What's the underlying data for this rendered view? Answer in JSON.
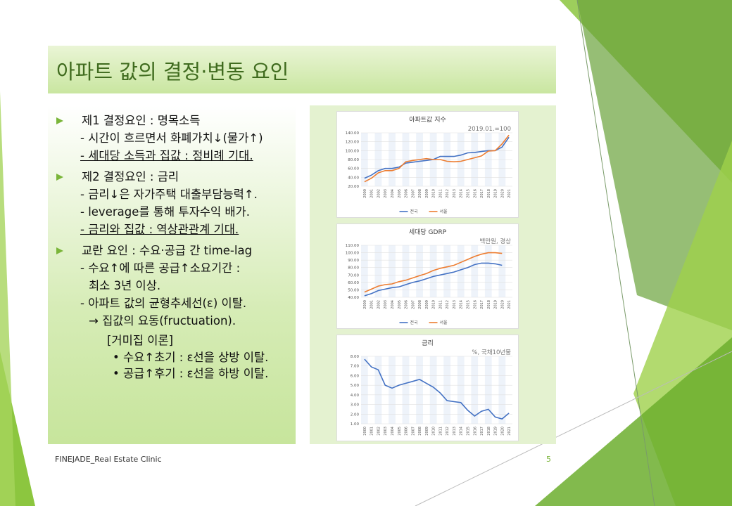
{
  "title": "아파트 값의 결정·변동 요인",
  "groups": [
    {
      "head": "제1 결정요인 : 명목소득",
      "subs": [
        {
          "text": "- 시간이 흐르면서 화폐가치↓(물가↑)"
        },
        {
          "text": "- 세대당 소득과 집값 : 정비례 기대.",
          "underline": true
        }
      ]
    },
    {
      "head": "제2 결정요인 : 금리",
      "subs": [
        {
          "text": "- 금리↓은 자가주택 대출부담능력↑."
        },
        {
          "text": "- leverage를 통해 투자수익 배가."
        },
        {
          "text": "- 금리와 집값 : 역상관관계 기대.",
          "underline": true
        }
      ]
    },
    {
      "head": "교란 요인 : 수요·공급 간 time-lag",
      "subs": [
        {
          "text": "- 수요↑에 따른 공급↑소요기간 :",
          "cont": "최소 3년 이상."
        },
        {
          "text": "- 아파트 값의 균형추세선(ε) 이탈.",
          "cont": "→ 집값의 요동(fructuation)."
        }
      ]
    }
  ],
  "theory": {
    "head": "[거미집 이론]",
    "points": [
      "수요↑초기 : ε선을 상방 이탈.",
      "공급↑후기 : ε선을 하방 이탈."
    ]
  },
  "footer": "FINEJADE_Real Estate Clinic",
  "page_number": "5",
  "chart_data": [
    {
      "type": "line",
      "title": "아파트값 지수",
      "note": "2019.01.=100",
      "categories": [
        "2000",
        "2001",
        "2002",
        "2003",
        "2004",
        "2005",
        "2006",
        "2007",
        "2008",
        "2009",
        "2010",
        "2011",
        "2012",
        "2013",
        "2014",
        "2015",
        "2016",
        "2017",
        "2018",
        "2019",
        "2020",
        "2021"
      ],
      "series": [
        {
          "name": "전국",
          "color": "#4472c4",
          "values": [
            38,
            45,
            55,
            60,
            60,
            63,
            72,
            74,
            76,
            78,
            80,
            87,
            87,
            87,
            90,
            95,
            96,
            98,
            100,
            100,
            108,
            130
          ]
        },
        {
          "name": "서울",
          "color": "#ed7d31",
          "values": [
            30,
            38,
            50,
            55,
            55,
            60,
            75,
            78,
            80,
            82,
            80,
            80,
            76,
            75,
            76,
            80,
            84,
            88,
            99,
            100,
            115,
            135
          ]
        }
      ],
      "ylim": [
        20,
        140
      ],
      "yticks": [
        {
          "value": 20,
          "label": "20.00"
        },
        {
          "value": 40,
          "label": "40.00"
        },
        {
          "value": 60,
          "label": "60.00"
        },
        {
          "value": 80,
          "label": "80.00"
        },
        {
          "value": 100,
          "label": "100.00"
        },
        {
          "value": 120,
          "label": "120.00"
        },
        {
          "value": 140,
          "label": "140.00"
        }
      ],
      "grid": true
    },
    {
      "type": "line",
      "title": "세대당 GDRP",
      "note": "백만원, 경상",
      "categories": [
        "2000",
        "2001",
        "2002",
        "2003",
        "2004",
        "2005",
        "2006",
        "2007",
        "2008",
        "2009",
        "2010",
        "2011",
        "2012",
        "2013",
        "2014",
        "2015",
        "2016",
        "2017",
        "2018",
        "2019",
        "2020",
        "2021"
      ],
      "series": [
        {
          "name": "전국",
          "color": "#4472c4",
          "values": [
            42,
            45,
            49,
            51,
            53,
            54,
            57,
            60,
            62,
            65,
            68,
            70,
            72,
            74,
            77,
            80,
            84,
            86,
            86,
            85,
            83,
            null
          ]
        },
        {
          "name": "서울",
          "color": "#ed7d31",
          "values": [
            47,
            51,
            55,
            57,
            58,
            61,
            63,
            66,
            69,
            72,
            76,
            79,
            81,
            83,
            87,
            91,
            95,
            98,
            100,
            100,
            99,
            null
          ]
        }
      ],
      "ylim": [
        40,
        110
      ],
      "yticks": [
        {
          "value": 40,
          "label": "40.00"
        },
        {
          "value": 50,
          "label": "50.00"
        },
        {
          "value": 60,
          "label": "60.00"
        },
        {
          "value": 70,
          "label": "70.00"
        },
        {
          "value": 80,
          "label": "80.00"
        },
        {
          "value": 90,
          "label": "90.00"
        },
        {
          "value": 100,
          "label": "100.00"
        },
        {
          "value": 110,
          "label": "110.00"
        }
      ],
      "grid": true
    },
    {
      "type": "line",
      "title": "금리",
      "note": "%, 국채10년물",
      "categories": [
        "2000",
        "2001",
        "2002",
        "2003",
        "2004",
        "2005",
        "2006",
        "2007",
        "2008",
        "2009",
        "2010",
        "2011",
        "2012",
        "2013",
        "2014",
        "2015",
        "2016",
        "2017",
        "2018",
        "2019",
        "2020",
        "2021"
      ],
      "values": [
        7.7,
        6.9,
        6.6,
        5.0,
        4.7,
        5.0,
        5.2,
        5.4,
        5.6,
        5.2,
        4.8,
        4.2,
        3.4,
        3.3,
        3.2,
        2.4,
        1.8,
        2.3,
        2.5,
        1.7,
        1.5,
        2.1
      ],
      "color": "#4472c4",
      "ylim": [
        1,
        8
      ],
      "yticks": [
        {
          "value": 1,
          "label": "1.00"
        },
        {
          "value": 2,
          "label": "2.00"
        },
        {
          "value": 3,
          "label": "3.00"
        },
        {
          "value": 4,
          "label": "4.00"
        },
        {
          "value": 5,
          "label": "5.00"
        },
        {
          "value": 6,
          "label": "6.00"
        },
        {
          "value": 7,
          "label": "7.00"
        },
        {
          "value": 8,
          "label": "8.00"
        }
      ],
      "grid": true
    }
  ]
}
